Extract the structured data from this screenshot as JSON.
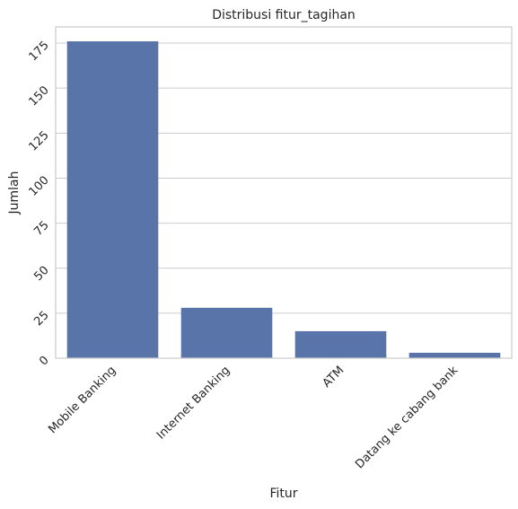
{
  "chart_data": {
    "type": "bar",
    "title": "Distribusi fitur_tagihan",
    "xlabel": "Fitur",
    "ylabel": "Jumlah",
    "categories": [
      "Mobile Banking",
      "Internet Banking",
      "ATM",
      "Datang ke cabang bank"
    ],
    "values": [
      176,
      28,
      15,
      3
    ],
    "ylim": [
      0,
      184
    ],
    "yticks": [
      0,
      25,
      50,
      75,
      100,
      125,
      150,
      175
    ],
    "grid": "horizontal",
    "bar_color": "#5874a8",
    "x_tick_rotation": 45,
    "y_tick_rotation": 45
  }
}
